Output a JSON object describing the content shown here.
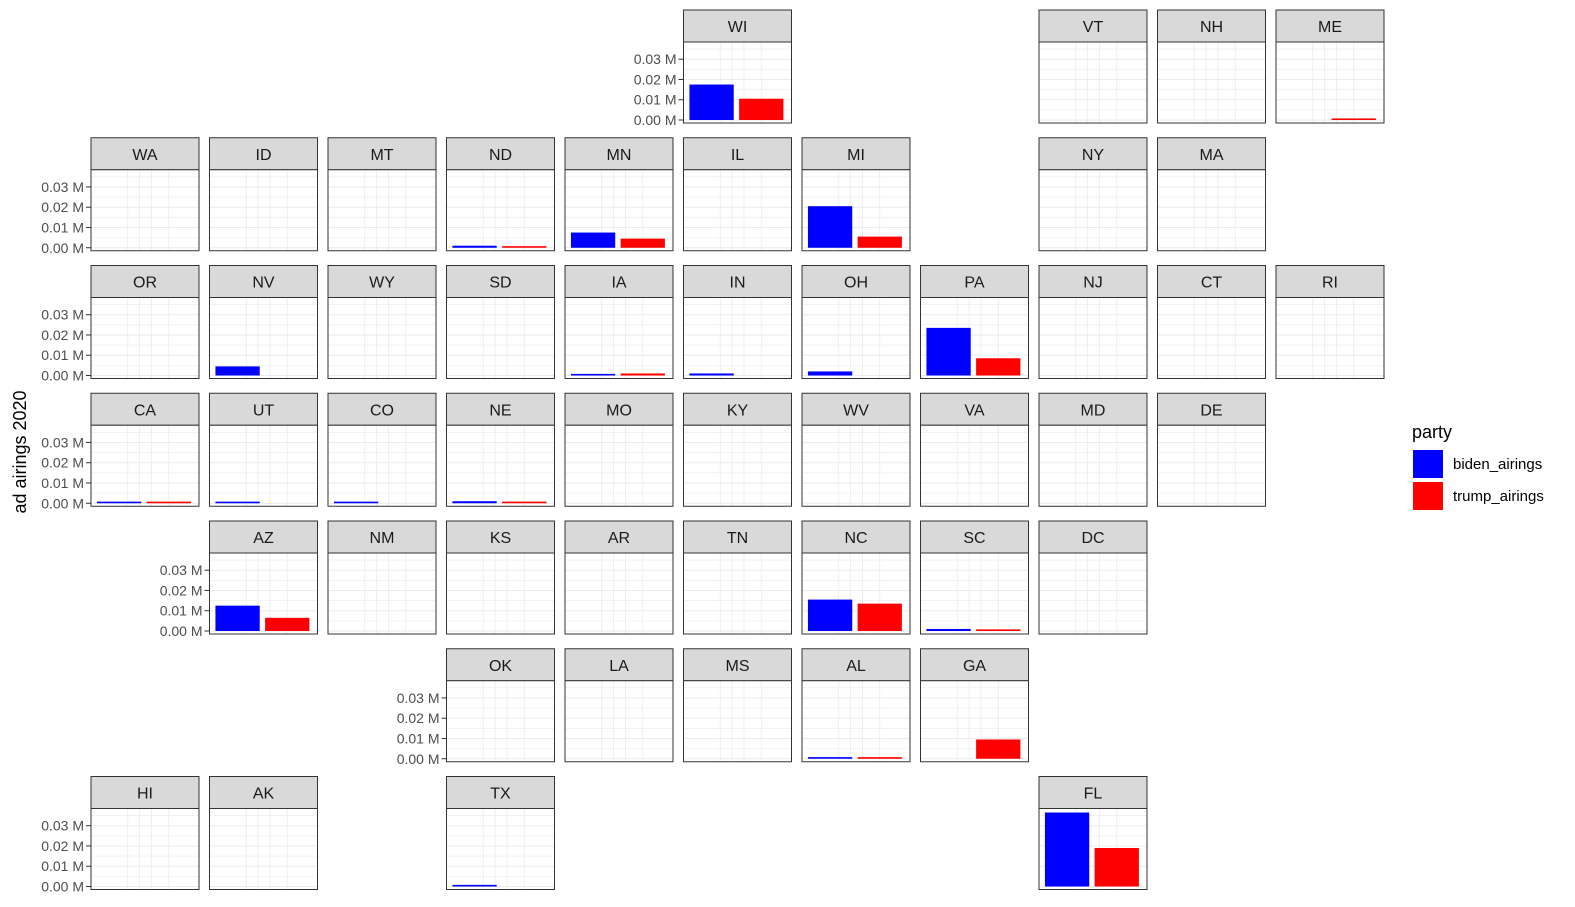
{
  "chart_data": {
    "type": "bar",
    "layout": "geofacet",
    "ylabel": "ad airings 2020",
    "xlabel": "",
    "ylim": [
      0,
      0.037
    ],
    "yticks": [
      0.0,
      0.01,
      0.02,
      0.03
    ],
    "ytick_labels": [
      "0.00 M",
      "0.01 M",
      "0.02 M",
      "0.03 M"
    ],
    "series_order": [
      "biden_airings",
      "trump_airings"
    ],
    "legend": {
      "title": "party",
      "position": "right",
      "items": [
        {
          "name": "biden_airings",
          "color": "#0000ff"
        },
        {
          "name": "trump_airings",
          "color": "#ff0000"
        }
      ]
    },
    "grid": true,
    "panels": [
      {
        "state": "WI",
        "row": 0,
        "col": 5,
        "values": [
          0.0175,
          0.0105
        ]
      },
      {
        "state": "VT",
        "row": 0,
        "col": 8,
        "values": [
          0,
          0
        ]
      },
      {
        "state": "NH",
        "row": 0,
        "col": 9,
        "values": [
          0,
          0
        ]
      },
      {
        "state": "ME",
        "row": 0,
        "col": 10,
        "values": [
          0,
          0.0005
        ]
      },
      {
        "state": "WA",
        "row": 1,
        "col": 0,
        "values": [
          0,
          0
        ]
      },
      {
        "state": "ID",
        "row": 1,
        "col": 1,
        "values": [
          0,
          0
        ]
      },
      {
        "state": "MT",
        "row": 1,
        "col": 2,
        "values": [
          0,
          0
        ]
      },
      {
        "state": "ND",
        "row": 1,
        "col": 3,
        "values": [
          0.001,
          0.0006
        ]
      },
      {
        "state": "MN",
        "row": 1,
        "col": 4,
        "values": [
          0.0075,
          0.0045
        ]
      },
      {
        "state": "IL",
        "row": 1,
        "col": 5,
        "values": [
          0,
          0
        ]
      },
      {
        "state": "MI",
        "row": 1,
        "col": 6,
        "values": [
          0.0205,
          0.0055
        ]
      },
      {
        "state": "NY",
        "row": 1,
        "col": 8,
        "values": [
          0,
          0
        ]
      },
      {
        "state": "MA",
        "row": 1,
        "col": 9,
        "values": [
          0,
          0
        ]
      },
      {
        "state": "OR",
        "row": 2,
        "col": 0,
        "values": [
          0,
          0
        ]
      },
      {
        "state": "NV",
        "row": 2,
        "col": 1,
        "values": [
          0.0045,
          0
        ]
      },
      {
        "state": "WY",
        "row": 2,
        "col": 2,
        "values": [
          0,
          0
        ]
      },
      {
        "state": "SD",
        "row": 2,
        "col": 3,
        "values": [
          0,
          0
        ]
      },
      {
        "state": "IA",
        "row": 2,
        "col": 4,
        "values": [
          0.0005,
          0.001
        ]
      },
      {
        "state": "IN",
        "row": 2,
        "col": 5,
        "values": [
          0.001,
          0
        ]
      },
      {
        "state": "OH",
        "row": 2,
        "col": 6,
        "values": [
          0.002,
          0
        ]
      },
      {
        "state": "PA",
        "row": 2,
        "col": 7,
        "values": [
          0.0235,
          0.0085
        ]
      },
      {
        "state": "NJ",
        "row": 2,
        "col": 8,
        "values": [
          0,
          0
        ]
      },
      {
        "state": "CT",
        "row": 2,
        "col": 9,
        "values": [
          0,
          0
        ]
      },
      {
        "state": "RI",
        "row": 2,
        "col": 10,
        "values": [
          0,
          0
        ]
      },
      {
        "state": "CA",
        "row": 3,
        "col": 0,
        "values": [
          0.0005,
          0.0005
        ]
      },
      {
        "state": "UT",
        "row": 3,
        "col": 1,
        "values": [
          0.0004,
          0
        ]
      },
      {
        "state": "CO",
        "row": 3,
        "col": 2,
        "values": [
          0.0004,
          0
        ]
      },
      {
        "state": "NE",
        "row": 3,
        "col": 3,
        "values": [
          0.001,
          0.0008
        ]
      },
      {
        "state": "MO",
        "row": 3,
        "col": 4,
        "values": [
          0,
          0
        ]
      },
      {
        "state": "KY",
        "row": 3,
        "col": 5,
        "values": [
          0,
          0
        ]
      },
      {
        "state": "WV",
        "row": 3,
        "col": 6,
        "values": [
          0,
          0
        ]
      },
      {
        "state": "VA",
        "row": 3,
        "col": 7,
        "values": [
          0,
          0
        ]
      },
      {
        "state": "MD",
        "row": 3,
        "col": 8,
        "values": [
          0,
          0
        ]
      },
      {
        "state": "DE",
        "row": 3,
        "col": 9,
        "values": [
          0,
          0
        ]
      },
      {
        "state": "AZ",
        "row": 4,
        "col": 1,
        "values": [
          0.0125,
          0.0065
        ]
      },
      {
        "state": "NM",
        "row": 4,
        "col": 2,
        "values": [
          0,
          0
        ]
      },
      {
        "state": "KS",
        "row": 4,
        "col": 3,
        "values": [
          0,
          0
        ]
      },
      {
        "state": "AR",
        "row": 4,
        "col": 4,
        "values": [
          0,
          0
        ]
      },
      {
        "state": "TN",
        "row": 4,
        "col": 5,
        "values": [
          0,
          0
        ]
      },
      {
        "state": "NC",
        "row": 4,
        "col": 6,
        "values": [
          0.0155,
          0.0135
        ]
      },
      {
        "state": "SC",
        "row": 4,
        "col": 7,
        "values": [
          0.001,
          0.0008
        ]
      },
      {
        "state": "DC",
        "row": 4,
        "col": 8,
        "values": [
          0,
          0
        ]
      },
      {
        "state": "OK",
        "row": 5,
        "col": 3,
        "values": [
          0,
          0
        ]
      },
      {
        "state": "LA",
        "row": 5,
        "col": 4,
        "values": [
          0,
          0
        ]
      },
      {
        "state": "MS",
        "row": 5,
        "col": 5,
        "values": [
          0,
          0
        ]
      },
      {
        "state": "AL",
        "row": 5,
        "col": 6,
        "values": [
          0.0008,
          0.0008
        ]
      },
      {
        "state": "GA",
        "row": 5,
        "col": 7,
        "values": [
          0,
          0.0095
        ]
      },
      {
        "state": "HI",
        "row": 6,
        "col": 0,
        "values": [
          0,
          0
        ]
      },
      {
        "state": "AK",
        "row": 6,
        "col": 1,
        "values": [
          0,
          0
        ]
      },
      {
        "state": "TX",
        "row": 6,
        "col": 3,
        "values": [
          0.0008,
          0
        ]
      },
      {
        "state": "FL",
        "row": 6,
        "col": 8,
        "values": [
          0.0365,
          0.019
        ]
      }
    ]
  }
}
